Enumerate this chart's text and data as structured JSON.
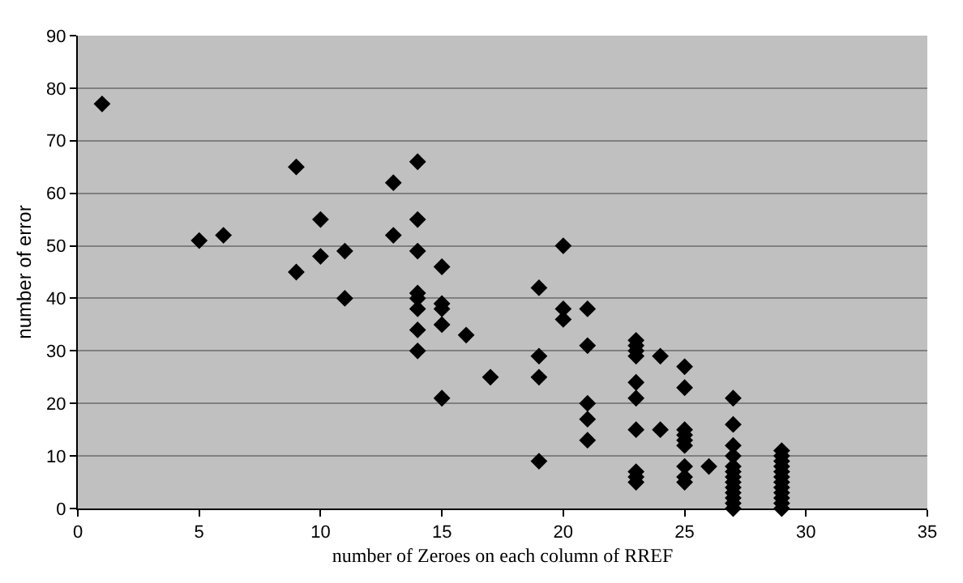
{
  "chart_data": {
    "type": "scatter",
    "xlabel": "number of Zeroes on each column of RREF",
    "ylabel": "number of error",
    "x": [
      1,
      5,
      6,
      9,
      9,
      10,
      10,
      11,
      11,
      13,
      13,
      14,
      14,
      14,
      14,
      14,
      14,
      14,
      14,
      15,
      15,
      15,
      15,
      15,
      16,
      17,
      19,
      19,
      19,
      19,
      20,
      20,
      20,
      21,
      21,
      21,
      21,
      21,
      23,
      23,
      23,
      23,
      23,
      23,
      23,
      23,
      23,
      23,
      24,
      24,
      25,
      25,
      25,
      25,
      25,
      25,
      25,
      25,
      25,
      26,
      27,
      27,
      27,
      27,
      27,
      27,
      27,
      27,
      27,
      27,
      27,
      27,
      27,
      29,
      29,
      29,
      29,
      29,
      29,
      29,
      29,
      29,
      29,
      29,
      29
    ],
    "values": [
      77,
      51,
      52,
      65,
      45,
      55,
      48,
      49,
      40,
      62,
      52,
      66,
      55,
      49,
      41,
      40,
      38,
      34,
      30,
      46,
      39,
      38,
      35,
      21,
      33,
      25,
      42,
      29,
      25,
      9,
      50,
      38,
      36,
      38,
      31,
      20,
      17,
      13,
      32,
      31,
      30,
      29,
      24,
      21,
      15,
      7,
      6,
      5,
      29,
      15,
      27,
      23,
      15,
      14,
      13,
      12,
      8,
      6,
      5,
      8,
      21,
      16,
      12,
      10,
      8,
      7,
      6,
      5,
      4,
      3,
      2,
      1,
      0,
      11,
      10,
      9,
      8,
      7,
      6,
      5,
      4,
      3,
      2,
      1,
      0
    ],
    "color": "#000000",
    "marker": "diamond",
    "xlim": [
      0,
      35
    ],
    "xticks": [
      0,
      5,
      10,
      15,
      20,
      25,
      30,
      35
    ],
    "ylim": [
      0,
      90
    ],
    "yticks": [
      0,
      10,
      20,
      30,
      40,
      50,
      60,
      70,
      80,
      90
    ],
    "grid": "y",
    "legend": false
  }
}
